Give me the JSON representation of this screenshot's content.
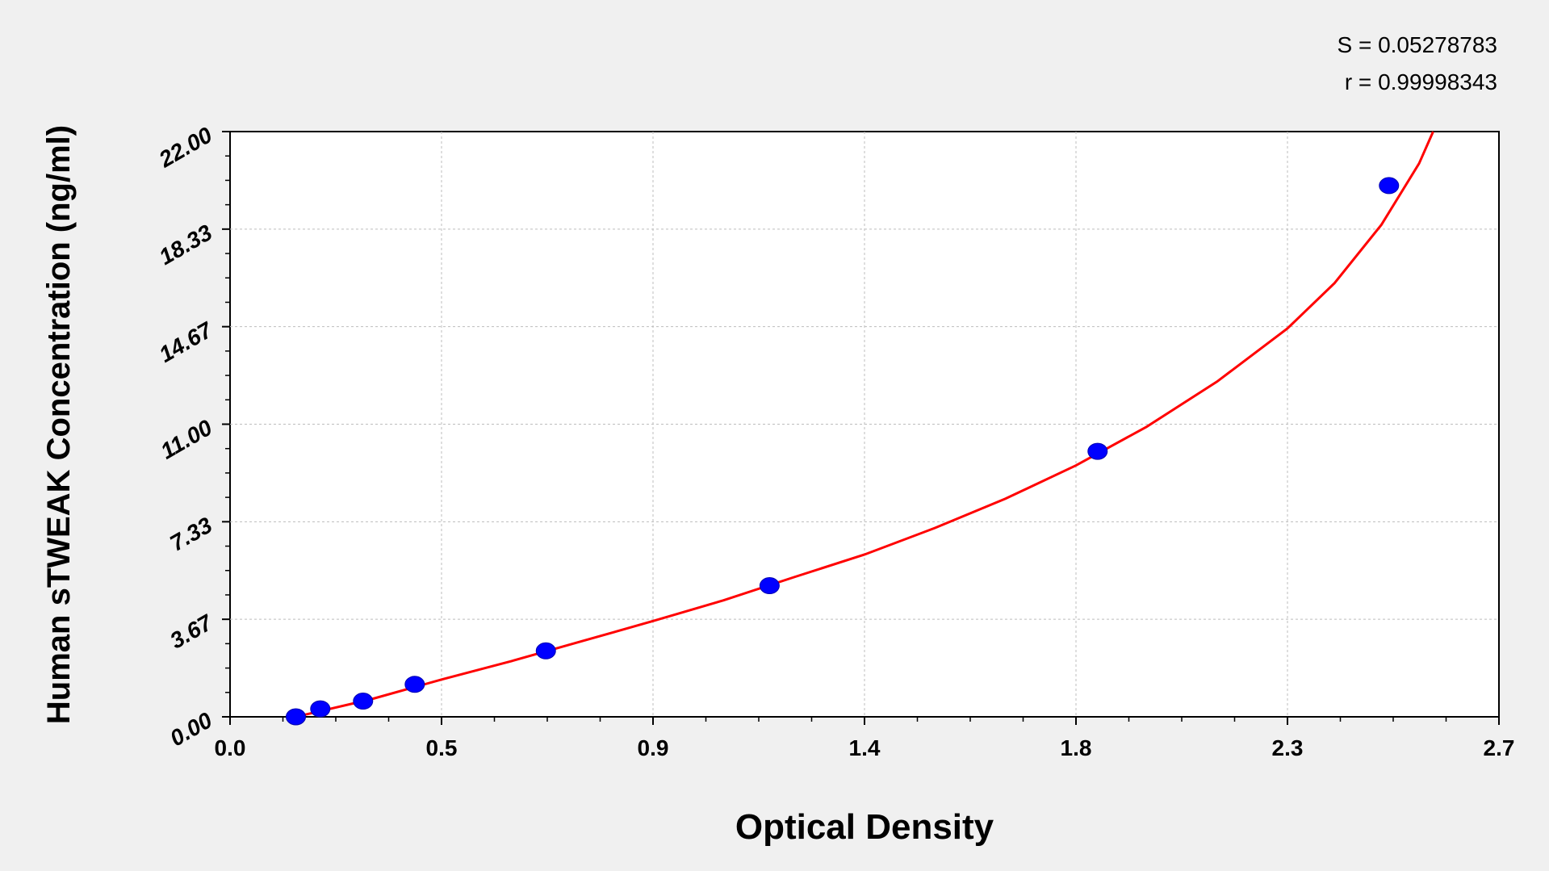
{
  "chart_data": {
    "type": "scatter",
    "xlabel": "Optical Density",
    "ylabel": "Human sTWEAK Concentration (ng/ml)",
    "xlim": [
      0.0,
      2.7
    ],
    "ylim": [
      0.0,
      22.0
    ],
    "x_ticks": [
      "0.0",
      "0.5",
      "0.9",
      "1.4",
      "1.8",
      "2.3",
      "2.7"
    ],
    "y_ticks": [
      "0.00",
      "3.67",
      "7.33",
      "11.00",
      "14.67",
      "18.33",
      "22.00"
    ],
    "grid": true,
    "annotations": [
      "S = 0.05278783",
      "r = 0.99998343"
    ],
    "series": [
      {
        "values": [
          {
            "x": 0.14,
            "y": 0.0
          },
          {
            "x": 0.192,
            "y": 0.3
          },
          {
            "x": 0.283,
            "y": 0.59
          },
          {
            "x": 0.393,
            "y": 1.22
          },
          {
            "x": 0.672,
            "y": 2.48
          },
          {
            "x": 1.148,
            "y": 4.93
          },
          {
            "x": 1.846,
            "y": 9.98
          },
          {
            "x": 2.466,
            "y": 19.97
          }
        ],
        "color": "#0000ff"
      },
      {
        "values": [
          {
            "x": 0.14,
            "y": 0.0
          },
          {
            "x": 0.3,
            "y": 0.66
          },
          {
            "x": 0.45,
            "y": 1.4
          },
          {
            "x": 0.6,
            "y": 2.1
          },
          {
            "x": 0.75,
            "y": 2.85
          },
          {
            "x": 0.9,
            "y": 3.6
          },
          {
            "x": 1.05,
            "y": 4.38
          },
          {
            "x": 1.2,
            "y": 5.25
          },
          {
            "x": 1.35,
            "y": 6.1
          },
          {
            "x": 1.5,
            "y": 7.1
          },
          {
            "x": 1.65,
            "y": 8.2
          },
          {
            "x": 1.8,
            "y": 9.45
          },
          {
            "x": 1.95,
            "y": 10.9
          },
          {
            "x": 2.1,
            "y": 12.6
          },
          {
            "x": 2.25,
            "y": 14.6
          },
          {
            "x": 2.35,
            "y": 16.3
          },
          {
            "x": 2.45,
            "y": 18.5
          },
          {
            "x": 2.53,
            "y": 20.8
          },
          {
            "x": 2.56,
            "y": 22.0
          }
        ],
        "color": "#ff0000"
      }
    ]
  }
}
